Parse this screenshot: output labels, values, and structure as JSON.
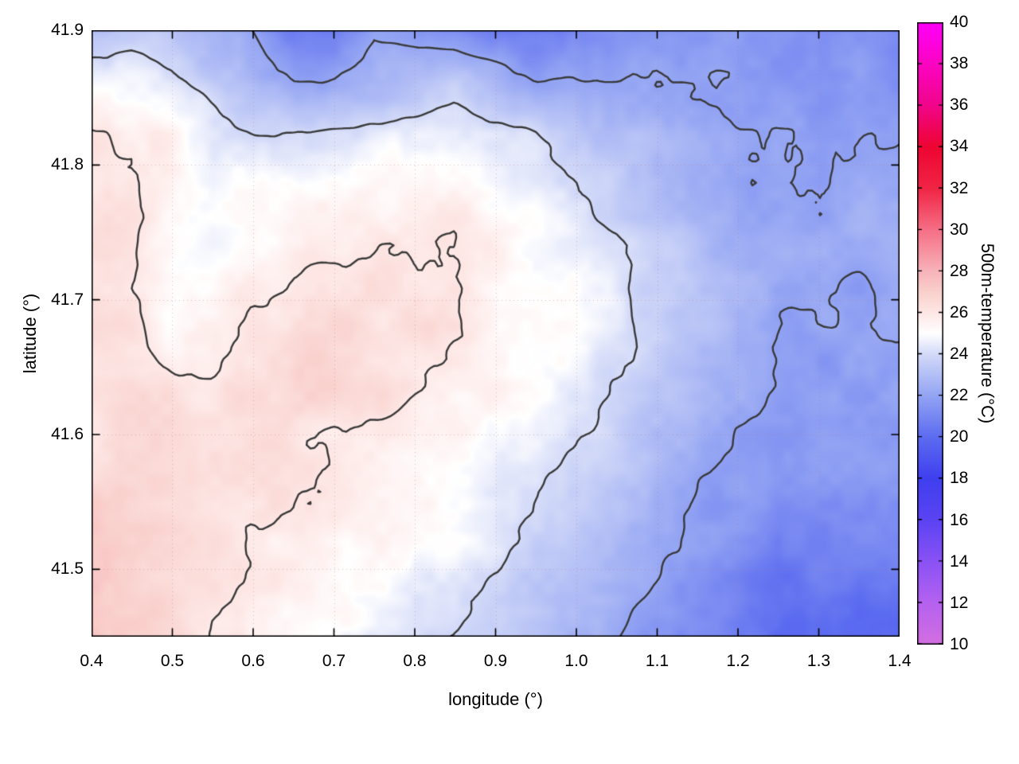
{
  "chart_data": {
    "type": "heatmap",
    "xlabel": "longitude (°)",
    "ylabel": "latitude (°)",
    "colorbar_label": "500m-temperature (°C)",
    "x_range": [
      0.4,
      1.4
    ],
    "y_range": [
      41.45,
      41.9
    ],
    "color_range": [
      10,
      40
    ],
    "grid_dotted": true,
    "x_ticks": {
      "values": [
        0.4,
        0.5,
        0.6,
        0.7,
        0.8,
        0.9,
        1.0,
        1.1,
        1.2,
        1.3,
        1.4
      ],
      "labels": [
        "0.4",
        "0.5",
        "0.6",
        "0.7",
        "0.8",
        "0.9",
        "1.0",
        "1.1",
        "1.2",
        "1.3",
        "1.4"
      ]
    },
    "y_ticks": {
      "values": [
        41.5,
        41.6,
        41.7,
        41.8,
        41.9
      ],
      "labels": [
        "41.5",
        "41.6",
        "41.7",
        "41.8",
        "41.9"
      ]
    },
    "colorbar_ticks": {
      "values": [
        10,
        12,
        14,
        16,
        18,
        20,
        22,
        24,
        26,
        28,
        30,
        32,
        34,
        36,
        38,
        40
      ],
      "labels": [
        "10",
        "12",
        "14",
        "16",
        "18",
        "20",
        "22",
        "24",
        "26",
        "28",
        "30",
        "32",
        "34",
        "36",
        "38",
        "40"
      ]
    },
    "contour_levels": [
      22,
      24,
      26
    ],
    "contour_color": "#3a3a3a",
    "palette": [
      [
        10,
        "#d36ee0"
      ],
      [
        12,
        "#b561ef"
      ],
      [
        14,
        "#8a52f5"
      ],
      [
        16,
        "#5b43f2"
      ],
      [
        18,
        "#3f3fee"
      ],
      [
        20,
        "#5c6cf0"
      ],
      [
        22,
        "#93a4f3"
      ],
      [
        24,
        "#d3daf8"
      ],
      [
        25,
        "#ffffff"
      ],
      [
        26,
        "#fde7e5"
      ],
      [
        27,
        "#f9d0cc"
      ],
      [
        28,
        "#f7b3ba"
      ],
      [
        30,
        "#f56f86"
      ],
      [
        32,
        "#f02545"
      ],
      [
        34,
        "#ee0532"
      ],
      [
        36,
        "#f0058a"
      ],
      [
        38,
        "#fb04c3"
      ],
      [
        40,
        "#ff00f8"
      ]
    ],
    "grid": {
      "lon_start": 0.4,
      "lon_step": 0.05,
      "lat_start": 41.9,
      "lat_step": -0.038,
      "ncols": 21,
      "nrows": 13,
      "values_c": [
        [
          23.2,
          23.4,
          23.0,
          22.5,
          22.0,
          20.6,
          20.5,
          21.8,
          21.5,
          21.0,
          20.6,
          20.6,
          21.0,
          21.4,
          21.5,
          21.5,
          21.9,
          21.6,
          21.5,
          21.5,
          21.2
        ],
        [
          24.8,
          24.8,
          24.3,
          23.4,
          22.6,
          22.0,
          22.0,
          22.4,
          22.9,
          23.4,
          22.6,
          22.1,
          22.0,
          22.0,
          22.0,
          22.0,
          22.0,
          21.6,
          21.5,
          21.6,
          21.5
        ],
        [
          26.0,
          25.9,
          25.4,
          24.5,
          24.0,
          24.0,
          24.2,
          24.3,
          24.5,
          24.8,
          24.5,
          24.0,
          23.5,
          23.0,
          22.5,
          22.3,
          22.0,
          22.0,
          22.0,
          22.0,
          22.0
        ],
        [
          26.2,
          26.2,
          25.5,
          24.8,
          25.0,
          25.2,
          25.2,
          25.3,
          25.3,
          25.5,
          25.0,
          24.5,
          24.0,
          23.5,
          23.0,
          22.5,
          22.2,
          22.0,
          22.0,
          22.2,
          22.4
        ],
        [
          26.3,
          26.1,
          25.2,
          24.8,
          25.3,
          25.5,
          25.6,
          25.8,
          25.8,
          26.0,
          25.5,
          25.0,
          24.5,
          24.0,
          23.5,
          23.0,
          22.5,
          22.3,
          22.2,
          22.4,
          22.8
        ],
        [
          26.3,
          26.1,
          25.0,
          25.0,
          25.8,
          26.2,
          26.3,
          26.3,
          26.2,
          26.0,
          25.5,
          25.0,
          24.8,
          24.3,
          23.5,
          23.0,
          22.5,
          22.3,
          22.0,
          22.0,
          22.3
        ],
        [
          26.3,
          26.3,
          25.5,
          25.8,
          26.3,
          26.5,
          26.5,
          26.4,
          26.3,
          26.0,
          25.5,
          25.2,
          24.8,
          24.3,
          23.8,
          23.0,
          22.3,
          22.0,
          21.8,
          21.8,
          22.0
        ],
        [
          26.5,
          26.5,
          26.3,
          26.2,
          26.5,
          26.6,
          26.5,
          26.3,
          26.2,
          25.8,
          25.3,
          25.0,
          24.5,
          24.0,
          23.3,
          22.8,
          22.3,
          22.0,
          21.8,
          21.8,
          21.8
        ],
        [
          26.3,
          26.5,
          26.5,
          26.3,
          26.3,
          26.2,
          26.0,
          25.8,
          25.5,
          25.3,
          25.0,
          24.5,
          24.0,
          23.5,
          23.0,
          22.5,
          22.0,
          21.8,
          21.8,
          21.8,
          21.8
        ],
        [
          26.8,
          26.8,
          26.5,
          26.3,
          26.2,
          26.0,
          25.8,
          25.5,
          25.3,
          25.0,
          24.5,
          24.0,
          23.5,
          23.0,
          22.5,
          22.0,
          21.8,
          21.5,
          21.5,
          21.5,
          21.5
        ],
        [
          27.0,
          26.8,
          26.5,
          26.3,
          26.0,
          25.8,
          25.5,
          25.3,
          25.0,
          24.8,
          24.3,
          23.8,
          23.3,
          22.8,
          22.3,
          21.8,
          21.3,
          20.4,
          21.0,
          21.2,
          21.0
        ],
        [
          27.0,
          26.8,
          26.5,
          26.2,
          25.8,
          25.5,
          25.2,
          24.8,
          24.5,
          24.3,
          23.8,
          23.3,
          22.8,
          22.3,
          21.8,
          21.3,
          21.0,
          20.5,
          20.5,
          20.3,
          20.3
        ],
        [
          27.2,
          27.0,
          26.5,
          26.0,
          25.5,
          25.2,
          25.0,
          24.5,
          24.2,
          24.0,
          23.5,
          23.0,
          22.5,
          22.0,
          21.5,
          21.0,
          20.5,
          20.0,
          19.8,
          19.8,
          20.0
        ]
      ]
    }
  }
}
